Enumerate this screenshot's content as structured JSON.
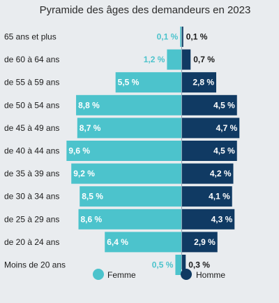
{
  "colors": {
    "femme": "#4cc3cc",
    "homme": "#103a63",
    "background": "#e9ecef"
  },
  "chart_data": {
    "type": "bar",
    "title": "Pyramide des âges des demandeurs en 2023",
    "categories": [
      "65 ans et plus",
      "de 60 à 64 ans",
      "de 55 à 59 ans",
      "de 50 à 54 ans",
      "de 45 à 49 ans",
      "de 40 à 44 ans",
      "de 35 à 39 ans",
      "de 30 à 34 ans",
      "de 25 à 29 ans",
      "de 20 à 24 ans",
      "Moins de 20 ans"
    ],
    "series": [
      {
        "name": "Femme",
        "values": [
          0.1,
          1.2,
          5.5,
          8.8,
          8.7,
          9.6,
          9.2,
          8.5,
          8.6,
          6.4,
          0.5
        ],
        "labels": [
          "0,1 %",
          "1,2 %",
          "5,5 %",
          "8,8 %",
          "8,7 %",
          "9,6 %",
          "9,2 %",
          "8,5 %",
          "8,6 %",
          "6,4 %",
          "0,5 %"
        ]
      },
      {
        "name": "Homme",
        "values": [
          0.1,
          0.7,
          2.8,
          4.5,
          4.7,
          4.5,
          4.2,
          4.1,
          4.3,
          2.9,
          0.3
        ],
        "labels": [
          "0,1 %",
          "0,7 %",
          "2,8 %",
          "4,5 %",
          "4,7 %",
          "4,5 %",
          "4,2 %",
          "4,1 %",
          "4,3 %",
          "2,9 %",
          "0,3 %"
        ]
      }
    ],
    "legend": [
      "Femme",
      "Homme"
    ],
    "legend_position": "bottom"
  }
}
